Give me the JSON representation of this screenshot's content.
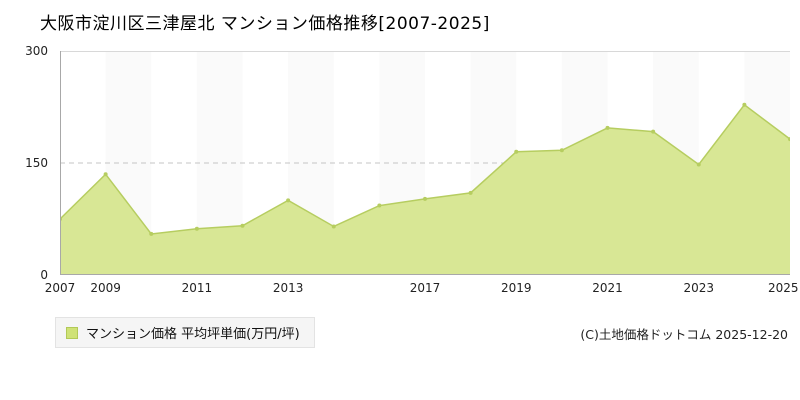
{
  "title": "大阪市淀川区三津屋北 マンション価格推移[2007-2025]",
  "legend": {
    "marker_color": "#cfe276",
    "label": "マンション価格 平均坪単価(万円/坪)"
  },
  "copyright": "(C)土地価格ドットコム 2025-12-20",
  "chart_data": {
    "type": "area",
    "title": "大阪市淀川区三津屋北 マンション価格推移[2007-2025]",
    "x": [
      2007,
      2009,
      2010,
      2011,
      2012,
      2013,
      2014,
      2016,
      2017,
      2018,
      2019,
      2020,
      2021,
      2022,
      2023,
      2024,
      2025
    ],
    "values": [
      75,
      135,
      55,
      62,
      66,
      100,
      65,
      93,
      102,
      110,
      165,
      167,
      197,
      192,
      148,
      228,
      182
    ],
    "series_name": "マンション価格 平均坪単価(万円/坪)",
    "x_tick_labels": [
      "2007",
      "2009",
      "2011",
      "2013",
      "2017",
      "2019",
      "2021",
      "2023",
      "2025"
    ],
    "y_ticks": [
      0,
      150,
      300
    ],
    "ylim": [
      0,
      300
    ],
    "xlabel": "",
    "ylabel": "",
    "unit": "万円/坪",
    "gridline_y": 150,
    "grid_style": "dashed",
    "legend_position": "bottom-left",
    "area_fill": "#d8e795",
    "area_stroke": "#b6cd60",
    "band_fill": "#fafafa"
  }
}
